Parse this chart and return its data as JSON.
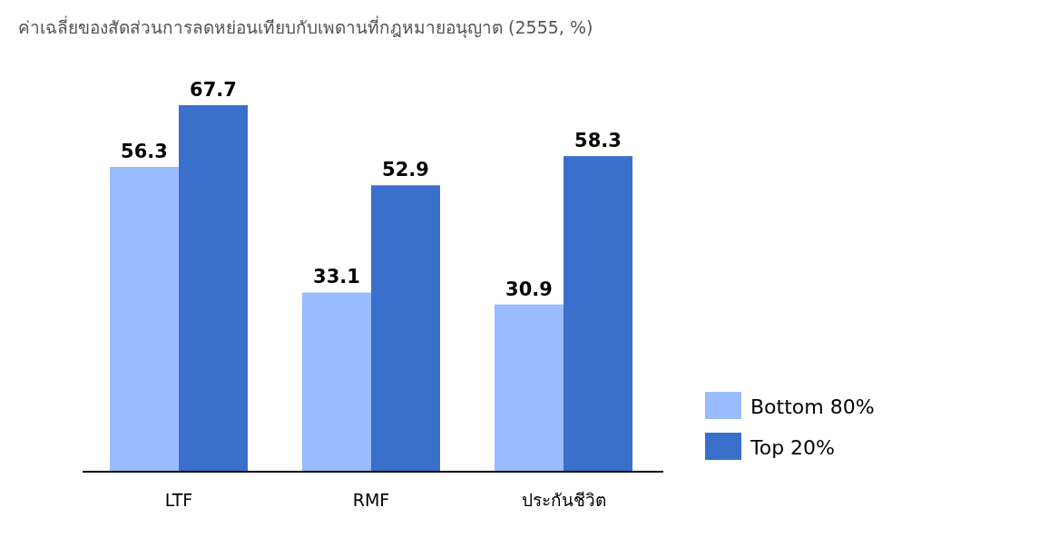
{
  "chart_data": {
    "type": "bar",
    "title": "ค่าเฉลี่ยของสัดส่วนการลดหย่อนเทียบกับเพดานที่กฎหมายอนุญาต  (2555, %)",
    "categories": [
      "LTF",
      "RMF",
      "ประกันชีวิต"
    ],
    "series": [
      {
        "name": "Bottom 80%",
        "color": "#99bbff",
        "values": [
          56.3,
          33.1,
          30.9
        ]
      },
      {
        "name": "Top 20%",
        "color": "#3a70cc",
        "values": [
          67.7,
          52.9,
          58.3
        ]
      }
    ],
    "data_labels": true,
    "legend": "bottom right"
  }
}
